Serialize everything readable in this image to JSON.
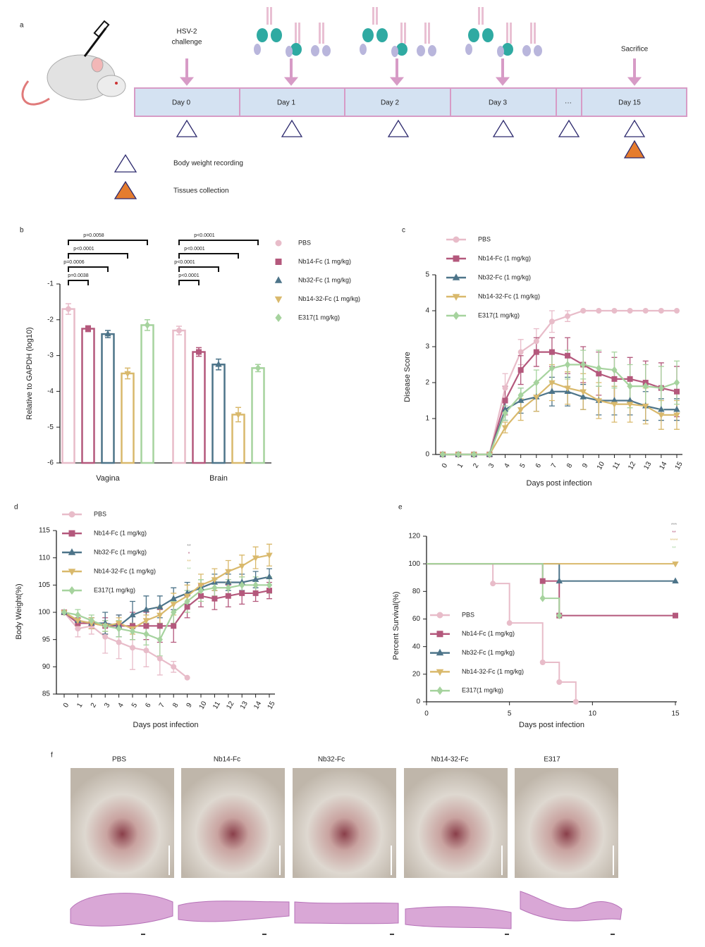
{
  "panel_a": {
    "label": "a",
    "challenge": [
      "HSV-2",
      "challenge"
    ],
    "days": [
      "Day 0",
      "Day 1",
      "Day 2",
      "Day 3",
      "···",
      "Day 15"
    ],
    "sacrifice": "Sacrifice",
    "legend": [
      "Body weight recording",
      "Tissues collection"
    ]
  },
  "chart_data": [
    {
      "type": "bar",
      "panel": "b",
      "ylabel": "Relative to GAPDH (log10)",
      "categories": [
        "Vagina",
        "Brain"
      ],
      "ylim": [
        -6,
        -1
      ],
      "yticks": [
        -6,
        -5,
        -4,
        -3,
        -2,
        -1
      ],
      "legend": "right",
      "series": [
        {
          "name": "PBS",
          "color": "#e8bcc9",
          "marker": "circle",
          "values": [
            -1.7,
            -2.3
          ],
          "errors": [
            0.15,
            0.12
          ]
        },
        {
          "name": "Nb14-Fc (1 mg/kg)",
          "color": "#b4587c",
          "marker": "square",
          "values": [
            -2.25,
            -2.9
          ],
          "errors": [
            0.08,
            0.12
          ]
        },
        {
          "name": "Nb32-Fc (1 mg/kg)",
          "color": "#4d7489",
          "marker": "triangle",
          "values": [
            -2.4,
            -3.25
          ],
          "errors": [
            0.1,
            0.15
          ]
        },
        {
          "name": "Nb14-32-Fc (1 mg/kg)",
          "color": "#d9b96c",
          "marker": "triangle-down",
          "values": [
            -3.5,
            -4.65
          ],
          "errors": [
            0.15,
            0.2
          ]
        },
        {
          "name": "E317(1 mg/kg)",
          "color": "#a6d39e",
          "marker": "diamond",
          "values": [
            -2.15,
            -3.35
          ],
          "errors": [
            0.15,
            0.1
          ]
        }
      ],
      "annotations": [
        [
          "p=0.0038",
          "p=0.0006",
          "p<0.0001",
          "p=0.0058"
        ],
        [
          "p<0.0001",
          "p<0.0001",
          "p<0.0001",
          "p<0.0001"
        ]
      ]
    },
    {
      "type": "line",
      "panel": "c",
      "ylabel": "Disease Score",
      "xlabel": "Days post infection",
      "legend": "upper left",
      "x": [
        0,
        1,
        2,
        3,
        4,
        5,
        6,
        7,
        8,
        9,
        10,
        11,
        12,
        13,
        14,
        15
      ],
      "xlim": [
        0,
        15
      ],
      "xticks": [
        0,
        1,
        2,
        3,
        4,
        5,
        6,
        7,
        8,
        9,
        10,
        11,
        12,
        13,
        14,
        15
      ],
      "ylim": [
        0,
        5
      ],
      "yticks": [
        0,
        1,
        2,
        3,
        4,
        5
      ],
      "series": [
        {
          "name": "PBS",
          "color": "#e8bcc9",
          "marker": "circle",
          "values": [
            0,
            0,
            0,
            0,
            1.85,
            2.85,
            3.15,
            3.7,
            3.85,
            4,
            4,
            4,
            4,
            4,
            4,
            4
          ],
          "errors": [
            0,
            0,
            0,
            0,
            0.4,
            0.35,
            0.35,
            0.3,
            0.15,
            0,
            0,
            0,
            0,
            0,
            0,
            0
          ]
        },
        {
          "name": "Nb14-Fc (1 mg/kg)",
          "color": "#b4587c",
          "marker": "square",
          "values": [
            0,
            0,
            0,
            0,
            1.5,
            2.35,
            2.85,
            2.85,
            2.75,
            2.5,
            2.25,
            2.1,
            2.1,
            2.0,
            1.85,
            1.75
          ],
          "errors": [
            0,
            0,
            0,
            0,
            0.4,
            0.4,
            0.4,
            0.4,
            0.5,
            0.5,
            0.6,
            0.6,
            0.6,
            0.6,
            0.7,
            0.7
          ]
        },
        {
          "name": "Nb32-Fc (1 mg/kg)",
          "color": "#4d7489",
          "marker": "triangle",
          "values": [
            0,
            0,
            0,
            0,
            1.25,
            1.5,
            1.6,
            1.75,
            1.75,
            1.6,
            1.5,
            1.5,
            1.5,
            1.35,
            1.25,
            1.25
          ],
          "errors": [
            0,
            0,
            0,
            0,
            0.3,
            0.35,
            0.4,
            0.4,
            0.4,
            0.35,
            0.4,
            0.4,
            0.4,
            0.4,
            0.3,
            0.3
          ]
        },
        {
          "name": "Nb14-32-Fc (1 mg/kg)",
          "color": "#d9b96c",
          "marker": "triangle-down",
          "values": [
            0,
            0,
            0,
            0,
            0.75,
            1.25,
            1.6,
            2.0,
            1.85,
            1.75,
            1.5,
            1.4,
            1.4,
            1.35,
            1.1,
            1.1
          ],
          "errors": [
            0,
            0,
            0,
            0,
            0.15,
            0.3,
            0.4,
            0.5,
            0.45,
            0.5,
            0.5,
            0.5,
            0.5,
            0.5,
            0.4,
            0.4
          ]
        },
        {
          "name": "E317(1 mg/kg)",
          "color": "#a6d39e",
          "marker": "diamond",
          "values": [
            0,
            0,
            0,
            0,
            1.15,
            1.65,
            2.0,
            2.4,
            2.5,
            2.5,
            2.4,
            2.35,
            1.9,
            1.9,
            1.85,
            2.0
          ],
          "errors": [
            0,
            0,
            0,
            0,
            0.2,
            0.2,
            0.35,
            0.4,
            0.4,
            0.4,
            0.5,
            0.5,
            0.6,
            0.6,
            0.6,
            0.6
          ]
        }
      ]
    },
    {
      "type": "line",
      "panel": "d",
      "ylabel": "Body Weight(%)",
      "xlabel": "Days post infection",
      "legend": "upper left",
      "x": [
        0,
        1,
        2,
        3,
        4,
        5,
        6,
        7,
        8,
        9,
        10,
        11,
        12,
        13,
        14,
        15
      ],
      "xlim": [
        0,
        15
      ],
      "xticks": [
        0,
        1,
        2,
        3,
        4,
        5,
        6,
        7,
        8,
        9,
        10,
        11,
        12,
        13,
        14,
        15
      ],
      "ylim": [
        85,
        115
      ],
      "yticks": [
        85,
        90,
        95,
        100,
        105,
        110,
        115
      ],
      "annotations": [
        {
          "text": "**",
          "color": "#8a8a8a"
        },
        {
          "text": "*",
          "color": "#b4587c"
        },
        {
          "text": "**",
          "color": "#d9b96c"
        },
        {
          "text": "**",
          "color": "#a6d39e"
        }
      ],
      "series": [
        {
          "name": "PBS",
          "color": "#e8bcc9",
          "marker": "circle",
          "values": [
            100,
            97,
            97.5,
            95.5,
            94.5,
            93.5,
            93,
            91.5,
            90,
            88,
            null,
            null,
            null,
            null,
            null,
            null
          ],
          "errors": [
            0,
            1.5,
            1.5,
            3,
            3,
            4,
            3,
            3,
            1,
            0,
            null,
            null,
            null,
            null,
            null,
            null
          ]
        },
        {
          "name": "Nb14-Fc (1 mg/kg)",
          "color": "#b4587c",
          "marker": "square",
          "values": [
            100,
            98,
            98,
            97.5,
            97.5,
            97.5,
            97.5,
            97.5,
            97.5,
            101,
            103,
            102.5,
            103,
            103.5,
            103.5,
            104
          ],
          "errors": [
            0,
            1,
            1,
            1.5,
            2,
            2.5,
            2.5,
            3,
            3,
            2,
            2,
            2,
            2,
            2,
            1.5,
            1.5
          ]
        },
        {
          "name": "Nb32-Fc (1 mg/kg)",
          "color": "#4d7489",
          "marker": "triangle",
          "values": [
            100,
            98.5,
            98,
            98,
            97.5,
            99.5,
            100.5,
            101,
            102.5,
            103.5,
            104.5,
            105.5,
            105.5,
            105.5,
            106,
            106.5
          ],
          "errors": [
            0,
            1,
            1,
            2,
            2,
            2.5,
            2.5,
            2,
            2,
            2,
            1.5,
            1.5,
            1.5,
            1.5,
            1.5,
            1.5
          ]
        },
        {
          "name": "Nb14-32-Fc (1 mg/kg)",
          "color": "#d9b96c",
          "marker": "triangle-down",
          "values": [
            100,
            98.5,
            98,
            97.5,
            98,
            97,
            98.5,
            99.5,
            101.5,
            103,
            105,
            106,
            107.5,
            108.5,
            110,
            110.5
          ],
          "errors": [
            0,
            1,
            1,
            1,
            1,
            1,
            1,
            1.5,
            2,
            2,
            2,
            2,
            2,
            2,
            2,
            2
          ]
        },
        {
          "name": "E317(1 mg/kg)",
          "color": "#a6d39e",
          "marker": "diamond",
          "values": [
            100,
            99.5,
            98.5,
            97.5,
            97,
            96.5,
            96,
            95,
            100,
            102,
            104,
            104.5,
            104.5,
            105,
            105,
            105
          ],
          "errors": [
            0,
            1,
            1,
            1,
            1.5,
            1.5,
            2,
            3,
            2,
            2,
            2,
            1.5,
            1.5,
            1.5,
            1.5,
            1.5
          ]
        }
      ]
    },
    {
      "type": "step",
      "panel": "e",
      "ylabel": "Percent Survival(%)",
      "xlabel": "Days post infection",
      "legend": "lower left",
      "xlim": [
        0,
        15
      ],
      "xticks": [
        0,
        5,
        10,
        15
      ],
      "ylim": [
        0,
        120
      ],
      "yticks": [
        0,
        20,
        40,
        60,
        80,
        100,
        120
      ],
      "annotations": [
        {
          "text": "***",
          "color": "#8a8a8a"
        },
        {
          "text": "**",
          "color": "#b4587c"
        },
        {
          "text": "****",
          "color": "#d9b96c"
        },
        {
          "text": "**",
          "color": "#a6d39e"
        }
      ],
      "series": [
        {
          "name": "PBS",
          "color": "#e8bcc9",
          "marker": "circle",
          "x": [
            0,
            4,
            5,
            7,
            8,
            9
          ],
          "values": [
            100,
            85.7,
            57.1,
            28.6,
            14.3,
            0
          ]
        },
        {
          "name": "Nb14-Fc (1 mg/kg)",
          "color": "#b4587c",
          "marker": "square",
          "x": [
            0,
            7,
            8,
            15
          ],
          "values": [
            100,
            87.5,
            62.5,
            62.5
          ]
        },
        {
          "name": "Nb32-Fc (1 mg/kg)",
          "color": "#4d7489",
          "marker": "triangle",
          "x": [
            0,
            8,
            15
          ],
          "values": [
            100,
            87.5,
            87.5
          ]
        },
        {
          "name": "Nb14-32-Fc (1 mg/kg)",
          "color": "#d9b96c",
          "marker": "triangle-down",
          "x": [
            0,
            15
          ],
          "values": [
            100,
            100
          ]
        },
        {
          "name": "E317(1 mg/kg)",
          "color": "#a6d39e",
          "marker": "diamond",
          "x": [
            0,
            7,
            8
          ],
          "values": [
            100,
            75,
            62.5
          ]
        }
      ]
    }
  ],
  "panel_f": {
    "label": "f",
    "groups": [
      "PBS",
      "Nb14-Fc",
      "Nb32-Fc",
      "Nb14-32-Fc",
      "E317"
    ]
  }
}
